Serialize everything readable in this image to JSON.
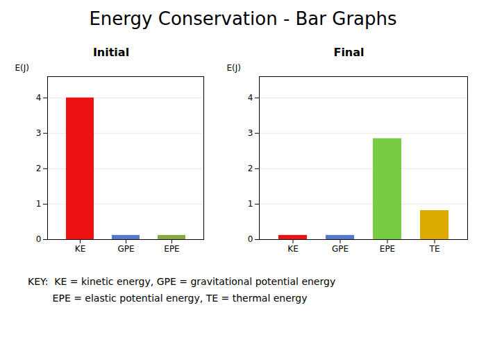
{
  "chart_data": [
    {
      "type": "bar",
      "title": "Energy Conservation - Bar Graphs",
      "subtitle": "Initial",
      "ylabel": "E(J)",
      "categories": [
        "KE",
        "GPE",
        "EPE"
      ],
      "values": [
        4,
        0.12,
        0.12
      ],
      "colors": [
        "#ee1111",
        "#5577cc",
        "#88aa44"
      ],
      "ylim": [
        0,
        4.6
      ],
      "yticks": [
        0,
        1,
        2,
        3,
        4
      ],
      "grid": true
    },
    {
      "type": "bar",
      "subtitle": "Final",
      "ylabel": "E(J)",
      "categories": [
        "KE",
        "GPE",
        "EPE",
        "TE"
      ],
      "values": [
        0.12,
        0.12,
        2.85,
        0.82
      ],
      "colors": [
        "#ee1111",
        "#5577cc",
        "#77cc44",
        "#ddaa00"
      ],
      "ylim": [
        0,
        4.6
      ],
      "yticks": [
        0,
        1,
        2,
        3,
        4
      ],
      "grid": true,
      "annotations": [
        "KEY:  KE = kinetic energy, GPE = gravitational potential energy",
        "        EPE = elastic potential energy, TE = thermal energy"
      ]
    }
  ]
}
